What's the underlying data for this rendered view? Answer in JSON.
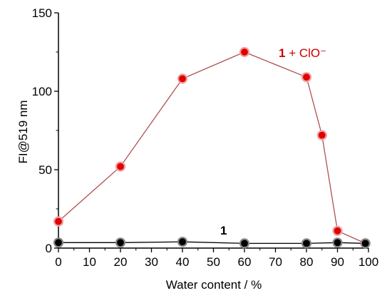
{
  "chart_data": {
    "type": "line",
    "title": "",
    "xlabel": "Water content / %",
    "ylabel": "FI@519 nm",
    "xlim": [
      0,
      100
    ],
    "ylim": [
      0,
      150
    ],
    "xticks": [
      0,
      10,
      20,
      30,
      40,
      50,
      60,
      70,
      80,
      90,
      100
    ],
    "yticks": [
      0,
      50,
      100,
      150
    ],
    "grid": false,
    "legend": "inline labels",
    "series": [
      {
        "label_bold": "1",
        "label_rest": " + ClO⁻",
        "color": "#e00000",
        "marker_edge": "#f0a0a0",
        "line_color": "#b05050",
        "x": [
          0,
          20,
          40,
          60,
          80,
          85,
          90,
          99
        ],
        "y": [
          17,
          52,
          108,
          125,
          109,
          72,
          11,
          3
        ]
      },
      {
        "label_bold": "1",
        "label_rest": "",
        "color": "#000000",
        "marker_edge": "#888888",
        "line_color": "#000000",
        "x": [
          0,
          20,
          40,
          60,
          80,
          90,
          99
        ],
        "y": [
          3.5,
          3.5,
          4,
          3,
          3,
          3.5,
          3
        ]
      }
    ]
  }
}
